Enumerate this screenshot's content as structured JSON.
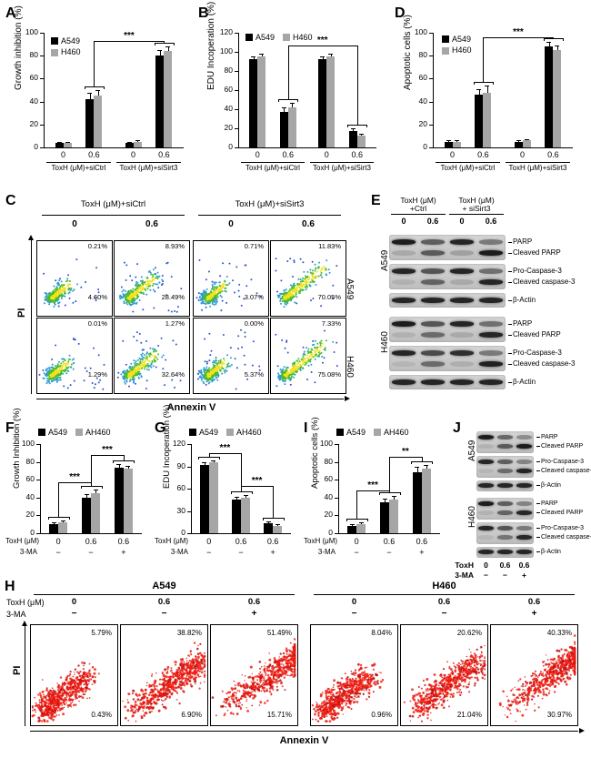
{
  "letters": {
    "A": "A",
    "B": "B",
    "C": "C",
    "D": "D",
    "E": "E",
    "F": "F",
    "G": "G",
    "H": "H",
    "I": "I",
    "J": "J"
  },
  "colors": {
    "a549": "#000000",
    "h460": "#a6a6a6",
    "flow_cold": "#2f56c9",
    "flow_mid": "#46bb2e",
    "flow_hot": "#f4e11c",
    "flow_red": "#f21d12"
  },
  "chart_data": [
    {
      "id": "A",
      "type": "bar",
      "ylabel": "Growth inhibition (%)",
      "ylim": [
        0,
        100
      ],
      "yticks": [
        0,
        20,
        40,
        60,
        80,
        100
      ],
      "categories": [
        "0",
        "0.6",
        "0",
        "0.6"
      ],
      "group_labels": [
        "ToxH (μM)+siCtrl",
        "ToxH (μM)+siSirt3"
      ],
      "series": [
        {
          "name": "A549",
          "color": "#000000",
          "values": [
            4,
            42,
            4,
            80
          ],
          "errors": [
            1,
            6,
            1,
            5
          ]
        },
        {
          "name": "H460",
          "color": "#a6a6a6",
          "values": [
            4,
            45,
            5,
            84
          ],
          "errors": [
            1,
            5,
            1,
            4
          ]
        }
      ],
      "significance": [
        {
          "from": 1,
          "to": 3,
          "label": "***",
          "y": 93
        }
      ],
      "legend_direction": "column",
      "legend_position": "top-left",
      "grid": false
    },
    {
      "id": "B",
      "type": "bar",
      "ylabel": "EDU Incoperation (%)",
      "ylim": [
        0,
        120
      ],
      "yticks": [
        0,
        20,
        40,
        60,
        80,
        100,
        120
      ],
      "categories": [
        "0",
        "0.6",
        "0",
        "0.6"
      ],
      "group_labels": [
        "ToxH (μM)+siCtrl",
        "ToxH (μM)+siSirt3"
      ],
      "series": [
        {
          "name": "A549",
          "color": "#000000",
          "values": [
            92,
            37,
            92,
            17
          ],
          "errors": [
            3,
            5,
            3,
            3
          ]
        },
        {
          "name": "H460",
          "color": "#a6a6a6",
          "values": [
            95,
            42,
            95,
            12
          ],
          "errors": [
            3,
            5,
            3,
            2
          ]
        }
      ],
      "significance": [
        {
          "from": 1,
          "to": 3,
          "label": "***",
          "y": 107
        }
      ],
      "legend_direction": "row",
      "legend_position": "top-left",
      "grid": false
    },
    {
      "id": "D",
      "type": "bar",
      "ylabel": "Apoptotic cells (%)",
      "ylim": [
        0,
        100
      ],
      "yticks": [
        0,
        20,
        40,
        60,
        80,
        100
      ],
      "categories": [
        "0",
        "0.6",
        "0",
        "0.6"
      ],
      "group_labels": [
        "ToxH (μM)+siCtrl",
        "ToxH (μM)+siSirt3"
      ],
      "series": [
        {
          "name": "A549",
          "color": "#000000",
          "values": [
            5,
            46,
            5,
            88
          ],
          "errors": [
            1,
            5,
            1,
            4
          ]
        },
        {
          "name": "H460",
          "color": "#a6a6a6",
          "values": [
            5,
            48,
            6,
            85
          ],
          "errors": [
            1,
            6,
            1,
            4
          ]
        }
      ],
      "significance": [
        {
          "from": 1,
          "to": 3,
          "label": "***",
          "y": 96
        }
      ],
      "legend_direction": "column",
      "legend_position": "top-left",
      "grid": false
    },
    {
      "id": "F",
      "type": "bar",
      "ylabel": "Growth Inhibition (%)",
      "ylim": [
        0,
        100
      ],
      "yticks": [
        0,
        20,
        40,
        60,
        80,
        100
      ],
      "categories": [
        "0",
        "0.6",
        "0.6"
      ],
      "xrows": [
        {
          "label": "ToxH (μM)",
          "values": [
            "0",
            "0.6",
            "0.6"
          ]
        },
        {
          "label": "3-MA",
          "values": [
            "−",
            "−",
            "+"
          ]
        }
      ],
      "series": [
        {
          "name": "A549",
          "color": "#000000",
          "values": [
            10,
            40,
            73
          ],
          "errors": [
            2,
            4,
            5
          ]
        },
        {
          "name": "AH460",
          "color": "#a6a6a6",
          "values": [
            12,
            45,
            72
          ],
          "errors": [
            2,
            4,
            4
          ]
        }
      ],
      "significance": [
        {
          "from": 0,
          "to": 1,
          "label": "***",
          "y": 57
        },
        {
          "from": 1,
          "to": 2,
          "label": "***",
          "y": 88
        }
      ],
      "legend_direction": "row",
      "legend_position": "top",
      "grid": false
    },
    {
      "id": "G",
      "type": "bar",
      "ylabel": "EDU Incoperation (%)",
      "ylim": [
        0,
        120
      ],
      "yticks": [
        0,
        30,
        60,
        90,
        120
      ],
      "categories": [
        "0",
        "0.6",
        "0.6"
      ],
      "xrows": [
        {
          "label": "ToxH (μM)",
          "values": [
            "0",
            "0.6",
            "0.6"
          ]
        },
        {
          "label": "3-MA",
          "values": [
            "−",
            "−",
            "+"
          ]
        }
      ],
      "series": [
        {
          "name": "A549",
          "color": "#000000",
          "values": [
            92,
            45,
            13
          ],
          "errors": [
            4,
            4,
            3
          ]
        },
        {
          "name": "AH460",
          "color": "#a6a6a6",
          "values": [
            95,
            48,
            10
          ],
          "errors": [
            3,
            4,
            2
          ]
        }
      ],
      "significance": [
        {
          "from": 0,
          "to": 1,
          "label": "***",
          "y": 108
        },
        {
          "from": 1,
          "to": 2,
          "label": "***",
          "y": 64
        }
      ],
      "legend_direction": "row",
      "legend_position": "top",
      "grid": false
    },
    {
      "id": "I",
      "type": "bar",
      "ylabel": "Apoptotic cells (%)",
      "ylim": [
        0,
        100
      ],
      "yticks": [
        0,
        20,
        40,
        60,
        80,
        100
      ],
      "categories": [
        "0",
        "0.6",
        "0.6"
      ],
      "xrows": [
        {
          "label": "ToxH (μM)",
          "values": [
            "0",
            "0.6",
            "0.6"
          ]
        },
        {
          "label": "3-MA",
          "values": [
            "−",
            "−",
            "+"
          ]
        }
      ],
      "series": [
        {
          "name": "A549",
          "color": "#000000",
          "values": [
            8,
            35,
            68
          ],
          "errors": [
            2,
            4,
            6
          ]
        },
        {
          "name": "AH460",
          "color": "#a6a6a6",
          "values": [
            10,
            38,
            72
          ],
          "errors": [
            2,
            4,
            5
          ]
        }
      ],
      "significance": [
        {
          "from": 0,
          "to": 1,
          "label": "***",
          "y": 48
        },
        {
          "from": 1,
          "to": 2,
          "label": "**",
          "y": 86
        }
      ],
      "legend_direction": "row",
      "legend_position": "top",
      "grid": false
    }
  ],
  "flow_c": {
    "group_headers": [
      "ToxH (μM)+siCtrl",
      "ToxH (μM)+siSirt3"
    ],
    "doses": [
      "0",
      "0.6",
      "0",
      "0.6"
    ],
    "rows": [
      {
        "cell_line": "A549",
        "plots": [
          {
            "upper": "0.21%",
            "lower": "4.60%"
          },
          {
            "upper": "8.93%",
            "lower": "28.49%"
          },
          {
            "upper": "0.71%",
            "lower": "3.07%"
          },
          {
            "upper": "11.83%",
            "lower": "70.05%"
          }
        ]
      },
      {
        "cell_line": "H460",
        "plots": [
          {
            "upper": "0.01%",
            "lower": "1.29%"
          },
          {
            "upper": "1.27%",
            "lower": "32.64%"
          },
          {
            "upper": "0.00%",
            "lower": "5.37%"
          },
          {
            "upper": "7.33%",
            "lower": "75.08%"
          }
        ]
      }
    ],
    "xlabel": "Annexin V",
    "ylabel": "PI"
  },
  "blot_e": {
    "col_groups": [
      {
        "title_lines": [
          "ToxH (μM)",
          "+Ctrl"
        ],
        "doses": [
          "0",
          "0.6"
        ]
      },
      {
        "title_lines": [
          "ToxH (μM)",
          "+ siSirt3"
        ],
        "doses": [
          "0",
          "0.6"
        ]
      }
    ],
    "sections": [
      {
        "cell_line": "A549",
        "strips": [
          {
            "rows": [
              {
                "label": "PARP",
                "intensities": [
                  0.95,
                  0.6,
                  0.9,
                  0.45
                ]
              },
              {
                "label": "Cleaved PARP",
                "intensities": [
                  0.15,
                  0.6,
                  0.2,
                  0.95
                ]
              }
            ]
          },
          {
            "rows": [
              {
                "label": "Pro-Caspase-3",
                "intensities": [
                  0.9,
                  0.65,
                  0.9,
                  0.5
                ]
              },
              {
                "label": "Cleaved caspase-3",
                "intensities": [
                  0.1,
                  0.55,
                  0.15,
                  0.9
                ]
              }
            ]
          },
          {
            "rows": [
              {
                "label": "β-Actin",
                "intensities": [
                  0.9,
                  0.9,
                  0.9,
                  0.9
                ]
              }
            ]
          }
        ]
      },
      {
        "cell_line": "H460",
        "strips": [
          {
            "rows": [
              {
                "label": "PARP",
                "intensities": [
                  0.95,
                  0.65,
                  0.9,
                  0.5
                ]
              },
              {
                "label": "Cleaved PARP",
                "intensities": [
                  0.1,
                  0.5,
                  0.15,
                  0.9
                ]
              }
            ]
          },
          {
            "rows": [
              {
                "label": "Pro-Caspase-3",
                "intensities": [
                  0.9,
                  0.7,
                  0.85,
                  0.45
                ]
              },
              {
                "label": "Cleaved caspase-3",
                "intensities": [
                  0.08,
                  0.5,
                  0.12,
                  0.92
                ]
              }
            ]
          },
          {
            "rows": [
              {
                "label": "β-Actin",
                "intensities": [
                  0.9,
                  0.9,
                  0.9,
                  0.9
                ]
              }
            ]
          }
        ]
      }
    ]
  },
  "blot_j": {
    "sections": [
      {
        "cell_line": "A549",
        "strips": [
          {
            "rows": [
              {
                "label": "PARP",
                "intensities": [
                  0.95,
                  0.55,
                  0.35
                ]
              },
              {
                "label": "Cleaved PARP",
                "intensities": [
                  0.1,
                  0.6,
                  0.95
                ]
              }
            ]
          },
          {
            "rows": [
              {
                "label": "Pro-Caspase-3",
                "intensities": [
                  0.9,
                  0.6,
                  0.4
                ]
              },
              {
                "label": "Cleaved caspase-3",
                "intensities": [
                  0.08,
                  0.5,
                  0.9
                ]
              }
            ]
          },
          {
            "rows": [
              {
                "label": "β-Actin",
                "intensities": [
                  0.9,
                  0.9,
                  0.9
                ]
              }
            ]
          }
        ]
      },
      {
        "cell_line": "H460",
        "strips": [
          {
            "rows": [
              {
                "label": "PARP",
                "intensities": [
                  0.95,
                  0.6,
                  0.4
                ]
              },
              {
                "label": "Cleaved PARP",
                "intensities": [
                  0.1,
                  0.55,
                  0.9
                ]
              }
            ]
          },
          {
            "rows": [
              {
                "label": "Pro-Caspase-3",
                "intensities": [
                  0.9,
                  0.65,
                  0.45
                ]
              },
              {
                "label": "Cleaved caspase-3",
                "intensities": [
                  0.08,
                  0.45,
                  0.88
                ]
              }
            ]
          },
          {
            "rows": [
              {
                "label": "β-Actin",
                "intensities": [
                  0.9,
                  0.9,
                  0.9
                ]
              }
            ]
          }
        ]
      }
    ],
    "bottom_rows": [
      {
        "label": "ToxH",
        "values": [
          "0",
          "0.6",
          "0.6"
        ]
      },
      {
        "label": "3-MA",
        "values": [
          "−",
          "−",
          "+"
        ]
      }
    ]
  },
  "flow_h": {
    "row_labels": {
      "toxh": "ToxH (μM)",
      "ma": "3-MA"
    },
    "groups": [
      {
        "cell_line": "A549",
        "doses": [
          "0",
          "0.6",
          "0.6"
        ],
        "ma": [
          "−",
          "−",
          "+"
        ],
        "plots": [
          {
            "upper": "5.79%",
            "lower": "0.43%"
          },
          {
            "upper": "38.82%",
            "lower": "6.90%"
          },
          {
            "upper": "51.49%",
            "lower": "15.71%"
          }
        ]
      },
      {
        "cell_line": "H460",
        "doses": [
          "0",
          "0.6",
          "0.6"
        ],
        "ma": [
          "−",
          "−",
          "+"
        ],
        "plots": [
          {
            "upper": "8.04%",
            "lower": "0.96%"
          },
          {
            "upper": "20.62%",
            "lower": "21.04%"
          },
          {
            "upper": "40.33%",
            "lower": "30.97%"
          }
        ]
      }
    ],
    "xlabel": "Annexin V",
    "ylabel": "PI"
  }
}
